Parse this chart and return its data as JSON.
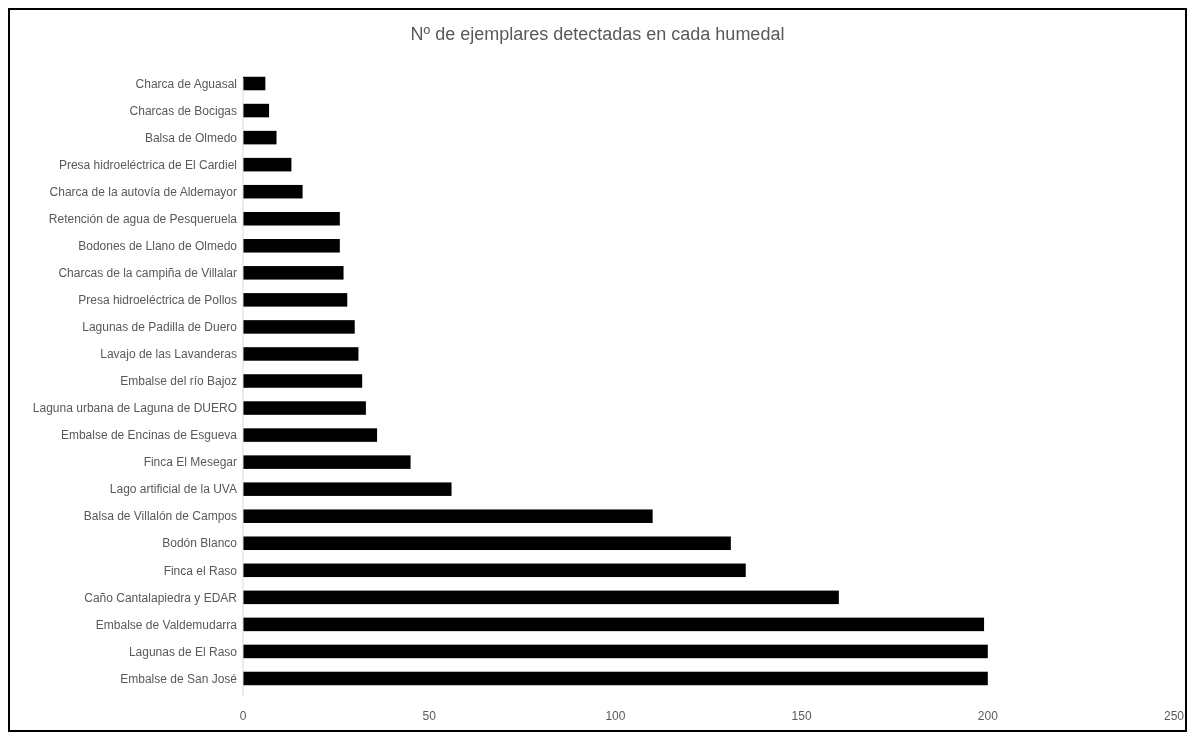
{
  "chart_data": {
    "type": "bar",
    "orientation": "horizontal",
    "title": "Nº de ejemplares detectadas en cada humedal",
    "categories": [
      "Charca de Aguasal",
      "Charcas de Bocigas",
      "Balsa de Olmedo",
      "Presa hidroeléctrica de El Cardiel",
      "Charca de la autovía de Aldemayor",
      "Retención de agua de Pesqueruela",
      "Bodones de Llano de Olmedo",
      "Charcas de la campiña de Villalar",
      "Presa hidroeléctrica de Pollos",
      "Lagunas de Padilla de Duero",
      "Lavajo de las Lavanderas",
      "Embalse del río Bajoz",
      "Laguna urbana de Laguna de DUERO",
      "Embalse de Encinas de Esgueva",
      "Finca El Mesegar",
      "Lago artificial de la UVA",
      "Balsa de Villalón de Campos",
      "Bodón Blanco",
      "Finca el Raso",
      "Caño Cantalapiedra y EDAR",
      "Embalse de Valdemudarra",
      "Lagunas de El Raso",
      "Embalse de San José"
    ],
    "values": [
      6,
      7,
      9,
      13,
      16,
      26,
      26,
      27,
      28,
      30,
      31,
      32,
      33,
      36,
      45,
      56,
      110,
      131,
      135,
      160,
      199,
      200,
      200
    ],
    "color": "#000000",
    "xlim": [
      0,
      250
    ],
    "xticks": [
      0,
      50,
      100,
      150,
      200,
      250
    ]
  }
}
